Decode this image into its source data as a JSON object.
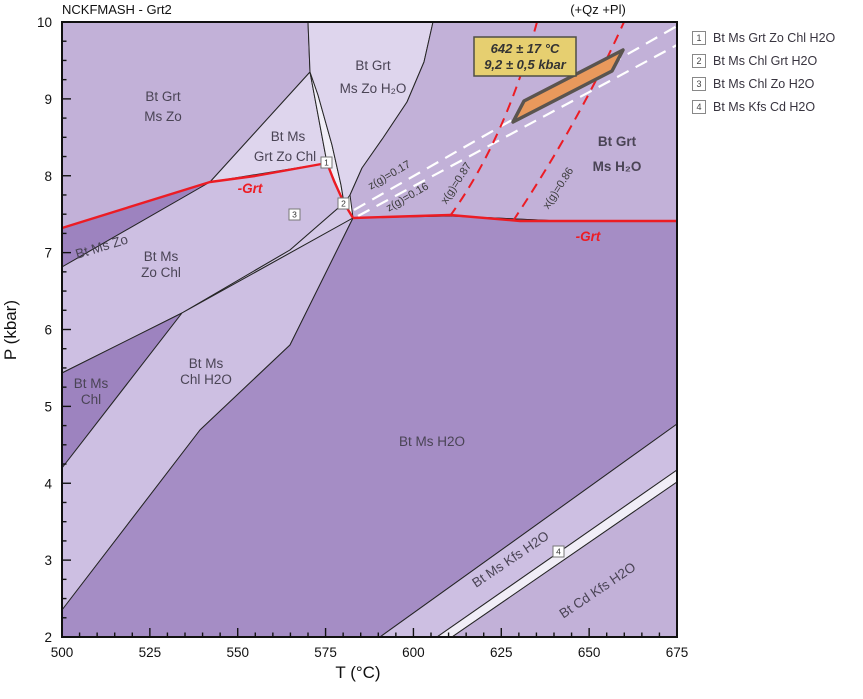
{
  "title": "NCKFMASH - Grt2",
  "annotation_top": "(+Qz +Pl)",
  "axes": {
    "x_label": "T (°C)",
    "y_label": "P (kbar)",
    "x_min": 500,
    "x_max": 675,
    "x_major": 25,
    "x_minor": 5,
    "y_min": 2,
    "y_max": 10,
    "y_major": 1,
    "y_minor": 0.25
  },
  "estimate_box": {
    "line1": "642 ± 17 °C",
    "line2": "9,2 ± 0,5 kbar"
  },
  "fields": {
    "bt_grt_ms_zo": {
      "line1": "Bt Grt",
      "line2": "Ms Zo"
    },
    "bt_grt_ms_zo_h2o": {
      "line1": "Bt Grt",
      "line2": "Ms Zo H₂O"
    },
    "bt_ms_grt_zo_chl": {
      "line1": "Bt Ms",
      "line2": "Grt Zo Chl"
    },
    "bt_grt_ms_h2o": {
      "line1": "Bt Grt",
      "line2": "Ms H₂O"
    },
    "bt_ms_zo": {
      "line1": "Bt Ms Zo"
    },
    "bt_ms_zo_chl": {
      "line1": "Bt Ms",
      "line2": "Zo Chl"
    },
    "bt_ms_chl": {
      "line1": "Bt Ms",
      "line2": "Chl"
    },
    "bt_ms_chl_h2o": {
      "line1": "Bt Ms",
      "line2": "Chl H2O"
    },
    "bt_ms_h2o": {
      "line1": "Bt Ms H2O"
    },
    "bt_ms_kfs_h2o": {
      "line1": "Bt Ms Kfs H2O"
    },
    "bt_cd_kfs_h2o": {
      "line1": "Bt Cd Kfs H2O"
    }
  },
  "grt_out": {
    "left": "-Grt",
    "right": "-Grt"
  },
  "isopleths": {
    "z17": "z(g)=0.17",
    "z16": "z(g)=0.16",
    "x87": "x(g)=0.87",
    "x86": "x(g)=0.86"
  },
  "markers": {
    "m1": "1",
    "m2": "2",
    "m3": "3",
    "m4": "4"
  },
  "legend": [
    {
      "num": "1",
      "label": "Bt Ms Grt Zo Chl H2O"
    },
    {
      "num": "2",
      "label": "Bt Ms Chl Grt H2O"
    },
    {
      "num": "3",
      "label": "Bt Ms Chl Zo H2O"
    },
    {
      "num": "4",
      "label": "Bt Ms Kfs Cd H2O"
    }
  ],
  "colors": {
    "field_mid": "#c2b1d8",
    "field_light": "#cdbfe2",
    "field_band3": "#d5c9e7",
    "field_dark": "#a58dc5",
    "field_darker": "#9d83bf",
    "field_pale": "#ded5ed",
    "field_sliver": "#f1eef7",
    "line_black": "#262626",
    "line_red": "#ec1c24",
    "ellipse_fill": "#e9995c",
    "ellipse_stroke": "#5a544f",
    "box_fill": "#e6cf70",
    "box_stroke": "#4f4f45"
  },
  "chart_data": {
    "type": "area",
    "subtype": "P-T pseudosection phase diagram",
    "title": "NCKFMASH - Grt2",
    "excess_phases": "(+Qz +Pl)",
    "xlabel": "T (°C)",
    "ylabel": "P (kbar)",
    "xlim": [
      500,
      675
    ],
    "ylim": [
      2,
      10
    ],
    "x_ticks": [
      500,
      525,
      550,
      575,
      600,
      625,
      650,
      675
    ],
    "y_ticks": [
      2,
      3,
      4,
      5,
      6,
      7,
      8,
      9,
      10
    ],
    "grid": false,
    "stability_fields": [
      "Bt Grt Ms Zo",
      "Bt Grt Ms Zo H2O",
      "Bt Ms Grt Zo Chl",
      "Bt Ms Grt Zo Chl H2O",
      "Bt Grt Ms H2O",
      "Bt Ms Zo",
      "Bt Ms Zo Chl",
      "Bt Ms Chl Grt H2O",
      "Bt Ms Chl Zo H2O",
      "Bt Ms Chl",
      "Bt Ms Chl H2O",
      "Bt Ms H2O",
      "Bt Ms Kfs H2O",
      "Bt Ms Kfs Cd H2O",
      "Bt Cd Kfs H2O"
    ],
    "numbered_fields": {
      "1": "Bt Ms Grt Zo Chl H2O",
      "2": "Bt Ms Chl Grt H2O",
      "3": "Bt Ms Chl Zo H2O",
      "4": "Bt Ms Kfs Cd H2O"
    },
    "garnet_out_lines": {
      "label": "-Grt",
      "style": "solid red"
    },
    "isopleths": [
      {
        "label": "z(g)=0.17",
        "style": "white dashed"
      },
      {
        "label": "z(g)=0.16",
        "style": "white dashed"
      },
      {
        "label": "x(g)=0.87",
        "style": "red dashed"
      },
      {
        "label": "x(g)=0.86",
        "style": "red dashed"
      }
    ],
    "pt_estimate": {
      "T": "642 ± 17 °C",
      "P": "9,2 ± 0,5 kbar"
    }
  }
}
